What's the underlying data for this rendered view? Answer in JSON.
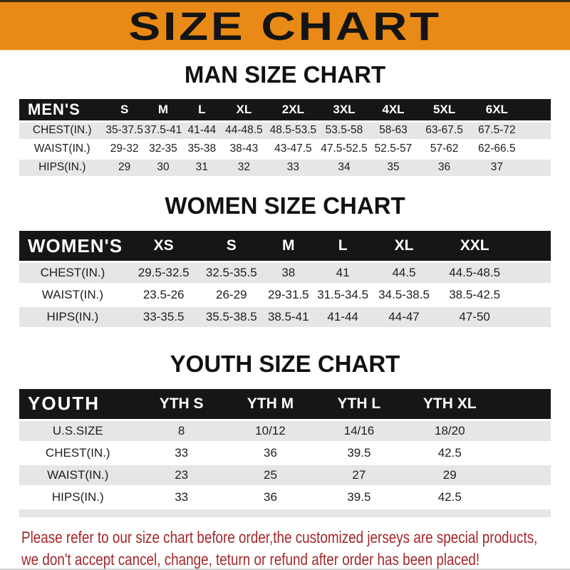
{
  "banner": {
    "title": "SIZE CHART"
  },
  "sections": {
    "men": {
      "heading": "MAN SIZE CHART",
      "table": {
        "header": [
          "MEN'S",
          "S",
          "M",
          "L",
          "XL",
          "2XL",
          "3XL",
          "4XL",
          "5XL",
          "6XL"
        ],
        "rows": [
          [
            "CHEST(IN.)",
            "35-37.5",
            "37.5-41",
            "41-44",
            "44-48.5",
            "48.5-53.5",
            "53.5-58",
            "58-63",
            "63-67.5",
            "67.5-72"
          ],
          [
            "WAIST(IN.)",
            "29-32",
            "32-35",
            "35-38",
            "38-43",
            "43-47.5",
            "47.5-52.5",
            "52.5-57",
            "57-62",
            "62-66.5"
          ],
          [
            "HIPS(IN.)",
            "29",
            "30",
            "31",
            "32",
            "33",
            "34",
            "35",
            "36",
            "37"
          ]
        ]
      }
    },
    "women": {
      "heading": "WOMEN SIZE CHART",
      "table": {
        "header": [
          "WOMEN'S",
          "XS",
          "S",
          "M",
          "L",
          "XL",
          "XXL"
        ],
        "rows": [
          [
            "CHEST(IN.)",
            "29.5-32.5",
            "32.5-35.5",
            "38",
            "41",
            "44.5",
            "44.5-48.5"
          ],
          [
            "WAIST(IN.)",
            "23.5-26",
            "26-29",
            "29-31.5",
            "31.5-34.5",
            "34.5-38.5",
            "38.5-42.5"
          ],
          [
            "HIPS(IN.)",
            "33-35.5",
            "35.5-38.5",
            "38.5-41",
            "41-44",
            "44-47",
            "47-50"
          ]
        ]
      }
    },
    "youth": {
      "heading": "YOUTH SIZE CHART",
      "table": {
        "header": [
          "YOUTH",
          "YTH S",
          "YTH M",
          "YTH L",
          "YTH XL"
        ],
        "rows": [
          [
            "U.S.SIZE",
            "8",
            "10/12",
            "14/16",
            "18/20"
          ],
          [
            "CHEST(IN.)",
            "33",
            "36",
            "39.5",
            "42.5"
          ],
          [
            "WAIST(IN.)",
            "23",
            "25",
            "27",
            "29"
          ],
          [
            "HIPS(IN.)",
            "33",
            "36",
            "39.5",
            "42.5"
          ]
        ]
      }
    }
  },
  "footer": {
    "line1": "Please refer to our size chart before order,the customized jerseys are special products,",
    "line2": "we don't accept cancel, change, teturn or refund after order has been placed!"
  },
  "colors": {
    "banner_orange": "#E98A17",
    "header_bar": "#161616",
    "row_shade": "#E6E6E6",
    "footer_red": "#A3282B"
  }
}
